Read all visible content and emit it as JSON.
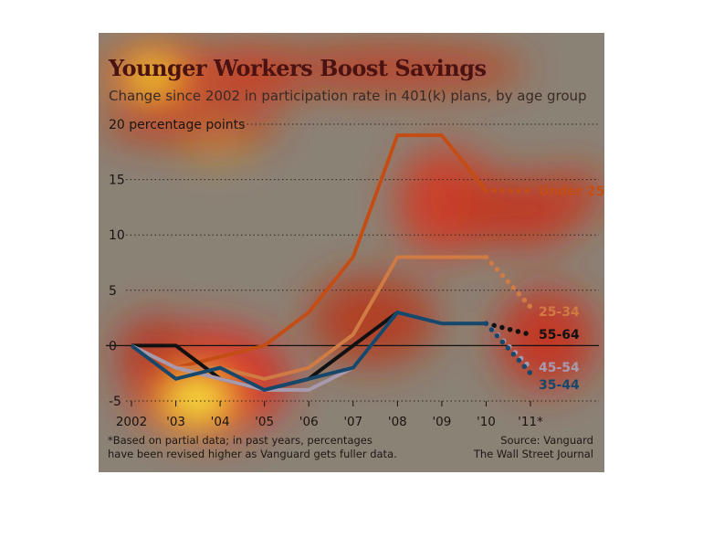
{
  "title": "Younger Workers Boost Savings",
  "subtitle": "Change since 2002 in participation rate in 401(k) plans, by age group",
  "footnote_lines": [
    "*Based on partial data; in past years, percentages",
    "have been revised higher as Vanguard gets fuller data."
  ],
  "source_lines": [
    "Source: Vanguard",
    "The Wall Street Journal"
  ],
  "colors": {
    "panel": "#8b8276",
    "zero_line": "#111111",
    "grid": "#2a2420"
  },
  "chart_data": {
    "type": "line",
    "title": "Younger Workers Boost Savings",
    "subtitle": "Change since 2002 in participation rate in 401(k) plans, by age group",
    "ylabel": "",
    "ylim": [
      -5,
      20
    ],
    "yticks": [
      -5,
      0,
      5,
      10,
      15,
      20
    ],
    "ytick_labels": [
      "-5",
      "0",
      "5",
      "10",
      "15",
      "20 percentage points"
    ],
    "x": [
      2002,
      2003,
      2004,
      2005,
      2006,
      2007,
      2008,
      2009,
      2010,
      2011
    ],
    "xtick_labels": [
      "2002",
      "'03",
      "'04",
      "'05",
      "'06",
      "'07",
      "'08",
      "'09",
      "'10",
      "'11*"
    ],
    "grid": true,
    "estimated_last_segment": true,
    "series": [
      {
        "name": "Under 25",
        "color": "#c44d16",
        "values": [
          0,
          -2,
          -1,
          0,
          3,
          8,
          19,
          19,
          14,
          14
        ]
      },
      {
        "name": "25-34",
        "color": "#d07a44",
        "values": [
          0,
          -2,
          -2,
          -3,
          -2,
          1,
          8,
          8,
          8,
          3.5
        ]
      },
      {
        "name": "55-64",
        "color": "#111111",
        "values": [
          0,
          0,
          -3,
          -4,
          -3,
          0,
          3,
          2,
          2,
          1
        ]
      },
      {
        "name": "45-54",
        "color": "#a89aae",
        "values": [
          0,
          -2,
          -3,
          -4,
          -4,
          -2,
          3,
          2,
          2,
          -2
        ]
      },
      {
        "name": "35-44",
        "color": "#17476a",
        "values": [
          0,
          -3,
          -2,
          -4,
          -3,
          -2,
          3,
          2,
          2,
          -2.5
        ]
      }
    ]
  }
}
